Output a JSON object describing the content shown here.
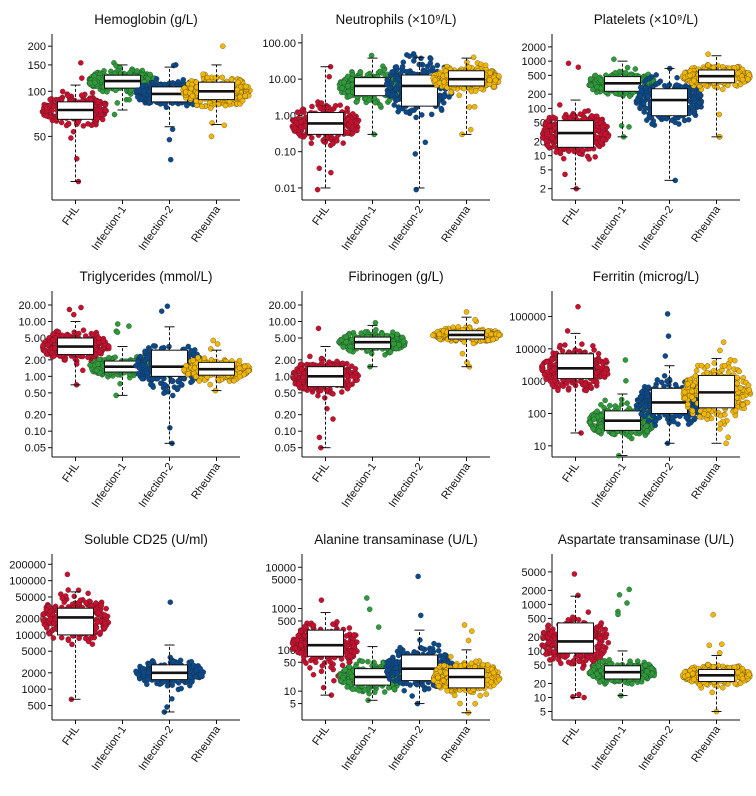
{
  "colors": {
    "FHL": "#c8102e",
    "Infection-1": "#2e9b3a",
    "Infection-2": "#0b4a8a",
    "Rheuma": "#f2b705"
  },
  "chart_data": [
    {
      "type": "box",
      "title": "Hemoglobin (g/L)",
      "categories": [
        "FHL",
        "Infection-1",
        "Infection-2",
        "Rheuma"
      ],
      "yscale": "log",
      "ylim": [
        20,
        220
      ],
      "yticks": [
        50,
        100,
        150,
        200
      ],
      "ytick_labels": [
        "50",
        "100",
        "150",
        "200"
      ],
      "boxes": [
        {
          "group": "FHL",
          "q1": 65,
          "median": 75,
          "q3": 85,
          "whisker_low": 25,
          "whisker_high": 110,
          "extent_low": 25,
          "extent_high": 155
        },
        {
          "group": "Infection-1",
          "q1": 105,
          "median": 117,
          "q3": 128,
          "whisker_low": 75,
          "whisker_high": 150,
          "extent_low": 70,
          "extent_high": 155
        },
        {
          "group": "Infection-2",
          "q1": 85,
          "median": 96,
          "q3": 107,
          "whisker_low": 58,
          "whisker_high": 145,
          "extent_low": 35,
          "extent_high": 150
        },
        {
          "group": "Rheuma",
          "q1": 88,
          "median": 100,
          "q3": 115,
          "whisker_low": 60,
          "whisker_high": 150,
          "extent_low": 50,
          "extent_high": 200
        }
      ]
    },
    {
      "type": "box",
      "title": "Neutrophils (×10⁹/L)",
      "categories": [
        "FHL",
        "Infection-1",
        "Infection-2",
        "Rheuma"
      ],
      "yscale": "log",
      "ylim": [
        0.006,
        120
      ],
      "yticks": [
        0.01,
        0.1,
        1,
        10,
        100
      ],
      "ytick_labels": [
        "0.01",
        "0.10",
        "1.00",
        "10.00",
        "100.00"
      ],
      "boxes": [
        {
          "group": "FHL",
          "q1": 0.3,
          "median": 0.6,
          "q3": 1.2,
          "whisker_low": 0.01,
          "whisker_high": 22,
          "extent_low": 0.009,
          "extent_high": 22
        },
        {
          "group": "Infection-1",
          "q1": 3.5,
          "median": 6.5,
          "q3": 11,
          "whisker_low": 0.3,
          "whisker_high": 38,
          "extent_low": 0.3,
          "extent_high": 45
        },
        {
          "group": "Infection-2",
          "q1": 1.8,
          "median": 6.5,
          "q3": 13,
          "whisker_low": 0.01,
          "whisker_high": 40,
          "extent_low": 0.009,
          "extent_high": 50
        },
        {
          "group": "Rheuma",
          "q1": 6.5,
          "median": 10,
          "q3": 17,
          "whisker_low": 0.3,
          "whisker_high": 38,
          "extent_low": 0.3,
          "extent_high": 40
        }
      ]
    },
    {
      "type": "box",
      "title": "Platelets (×10⁹/L)",
      "categories": [
        "FHL",
        "Infection-1",
        "Infection-2",
        "Rheuma"
      ],
      "yscale": "log",
      "ylim": [
        1.4,
        2800
      ],
      "yticks": [
        2,
        5,
        10,
        20,
        50,
        100,
        200,
        500,
        1000,
        2000
      ],
      "ytick_labels": [
        "2",
        "5",
        "10",
        "20",
        "50",
        "100",
        "200",
        "500",
        "1000",
        "2000"
      ],
      "boxes": [
        {
          "group": "FHL",
          "q1": 15,
          "median": 30,
          "q3": 55,
          "whisker_low": 2,
          "whisker_high": 150,
          "extent_low": 2,
          "extent_high": 900
        },
        {
          "group": "Infection-1",
          "q1": 230,
          "median": 340,
          "q3": 470,
          "whisker_low": 25,
          "whisker_high": 1000,
          "extent_low": 25,
          "extent_high": 1100
        },
        {
          "group": "Infection-2",
          "q1": 70,
          "median": 150,
          "q3": 260,
          "whisker_low": 3,
          "whisker_high": 700,
          "extent_low": 3,
          "extent_high": 700
        },
        {
          "group": "Rheuma",
          "q1": 350,
          "median": 480,
          "q3": 650,
          "whisker_low": 25,
          "whisker_high": 1300,
          "extent_low": 25,
          "extent_high": 1400
        }
      ]
    },
    {
      "type": "box",
      "title": "Triglycerides (mmol/L)",
      "categories": [
        "FHL",
        "Infection-1",
        "Infection-2",
        "Rheuma"
      ],
      "yscale": "log",
      "ylim": [
        0.04,
        28
      ],
      "yticks": [
        0.05,
        0.1,
        0.2,
        0.5,
        1,
        2,
        5,
        10,
        20
      ],
      "ytick_labels": [
        "0.05",
        "0.10",
        "0.20",
        "0.50",
        "1.00",
        "2.00",
        "5.00",
        "10.00",
        "20.00"
      ],
      "boxes": [
        {
          "group": "FHL",
          "q1": 2.5,
          "median": 3.5,
          "q3": 5.0,
          "whisker_low": 0.7,
          "whisker_high": 10,
          "extent_low": 0.7,
          "extent_high": 18
        },
        {
          "group": "Infection-1",
          "q1": 1.2,
          "median": 1.5,
          "q3": 1.9,
          "whisker_low": 0.45,
          "whisker_high": 3.5,
          "extent_low": 0.45,
          "extent_high": 9
        },
        {
          "group": "Infection-2",
          "q1": 1.0,
          "median": 1.5,
          "q3": 3.0,
          "whisker_low": 0.06,
          "whisker_high": 8,
          "extent_low": 0.06,
          "extent_high": 19
        },
        {
          "group": "Rheuma",
          "q1": 1.05,
          "median": 1.35,
          "q3": 1.8,
          "whisker_low": 0.55,
          "whisker_high": 3,
          "extent_low": 0.55,
          "extent_high": 4.5
        }
      ]
    },
    {
      "type": "box",
      "title": "Fibrinogen (g/L)",
      "categories": [
        "FHL",
        "Infection-1",
        "Infection-2",
        "Rheuma"
      ],
      "yscale": "log",
      "ylim": [
        0.04,
        28
      ],
      "yticks": [
        0.05,
        0.1,
        0.2,
        0.5,
        1,
        2,
        5,
        10,
        20
      ],
      "ytick_labels": [
        "0.05",
        "0.10",
        "0.20",
        "0.50",
        "1.00",
        "2.00",
        "5.00",
        "10.00",
        "20.00"
      ],
      "boxes": [
        {
          "group": "FHL",
          "q1": 0.65,
          "median": 1.0,
          "q3": 1.5,
          "whisker_low": 0.05,
          "whisker_high": 3.5,
          "extent_low": 0.05,
          "extent_high": 7.5
        },
        {
          "group": "Infection-1",
          "q1": 3.2,
          "median": 4.2,
          "q3": 5.2,
          "whisker_low": 1.5,
          "whisker_high": 8.5,
          "extent_low": 1.5,
          "extent_high": 9.5
        },
        {
          "group": "Rheuma",
          "q1": 4.8,
          "median": 5.7,
          "q3": 6.8,
          "whisker_low": 1.5,
          "whisker_high": 12,
          "extent_low": 1.5,
          "extent_high": 15
        }
      ]
    },
    {
      "type": "box",
      "title": "Ferritin (microg/L)",
      "categories": [
        "FHL",
        "Infection-1",
        "Infection-2",
        "Rheuma"
      ],
      "yscale": "log",
      "ylim": [
        6,
        400000
      ],
      "yticks": [
        10,
        100,
        1000,
        10000,
        100000
      ],
      "ytick_labels": [
        "10",
        "100",
        "1000",
        "10000",
        "100000"
      ],
      "boxes": [
        {
          "group": "FHL",
          "q1": 1200,
          "median": 2500,
          "q3": 7000,
          "whisker_low": 25,
          "whisker_high": 30000,
          "extent_low": 25,
          "extent_high": 200000
        },
        {
          "group": "Infection-1",
          "q1": 30,
          "median": 60,
          "q3": 120,
          "whisker_low": 5,
          "whisker_high": 400,
          "extent_low": 5,
          "extent_high": 4500
        },
        {
          "group": "Infection-2",
          "q1": 100,
          "median": 220,
          "q3": 600,
          "whisker_low": 12,
          "whisker_high": 3000,
          "extent_low": 12,
          "extent_high": 120000
        },
        {
          "group": "Rheuma",
          "q1": 150,
          "median": 450,
          "q3": 1500,
          "whisker_low": 12,
          "whisker_high": 5000,
          "extent_low": 12,
          "extent_high": 16000
        }
      ]
    },
    {
      "type": "box",
      "title": "Soluble CD25 (U/ml)",
      "categories": [
        "FHL",
        "Infection-1",
        "Infection-2",
        "Rheuma"
      ],
      "yscale": "log",
      "ylim": [
        320,
        240000
      ],
      "yticks": [
        500,
        1000,
        2000,
        5000,
        10000,
        20000,
        50000,
        100000,
        200000
      ],
      "ytick_labels": [
        "500",
        "1000",
        "2000",
        "5000",
        "10000",
        "20000",
        "50000",
        "100000",
        "200000"
      ],
      "boxes": [
        {
          "group": "FHL",
          "q1": 10000,
          "median": 21000,
          "q3": 31000,
          "whisker_low": 650,
          "whisker_high": 62000,
          "extent_low": 650,
          "extent_high": 130000
        },
        {
          "group": "Infection-2",
          "q1": 1500,
          "median": 2000,
          "q3": 2800,
          "whisker_low": 380,
          "whisker_high": 6500,
          "extent_low": 380,
          "extent_high": 40000
        }
      ]
    },
    {
      "type": "box",
      "title": "Alanine transaminase (U/L)",
      "categories": [
        "FHL",
        "Infection-1",
        "Infection-2",
        "Rheuma"
      ],
      "yscale": "log",
      "ylim": [
        2.5,
        15000
      ],
      "yticks": [
        5,
        10,
        50,
        100,
        500,
        1000,
        5000,
        10000
      ],
      "ytick_labels": [
        "5",
        "10",
        "50",
        "100",
        "500",
        "1000",
        "5000",
        "10000"
      ],
      "boxes": [
        {
          "group": "FHL",
          "q1": 70,
          "median": 130,
          "q3": 300,
          "whisker_low": 8,
          "whisker_high": 800,
          "extent_low": 8,
          "extent_high": 1600
        },
        {
          "group": "Infection-1",
          "q1": 14,
          "median": 22,
          "q3": 35,
          "whisker_low": 6,
          "whisker_high": 120,
          "extent_low": 6,
          "extent_high": 1800
        },
        {
          "group": "Infection-2",
          "q1": 18,
          "median": 35,
          "q3": 75,
          "whisker_low": 5,
          "whisker_high": 300,
          "extent_low": 5,
          "extent_high": 6000
        },
        {
          "group": "Rheuma",
          "q1": 12,
          "median": 22,
          "q3": 35,
          "whisker_low": 3,
          "whisker_high": 100,
          "extent_low": 3,
          "extent_high": 400
        }
      ]
    },
    {
      "type": "box",
      "title": "Aspartate transaminase (U/L)",
      "categories": [
        "FHL",
        "Infection-1",
        "Infection-2",
        "Rheuma"
      ],
      "yscale": "log",
      "ylim": [
        4,
        9000
      ],
      "yticks": [
        5,
        10,
        20,
        50,
        100,
        200,
        500,
        1000,
        2000,
        5000
      ],
      "ytick_labels": [
        "5",
        "10",
        "20",
        "50",
        "100",
        "200",
        "500",
        "1000",
        "2000",
        "5000"
      ],
      "boxes": [
        {
          "group": "FHL",
          "q1": 90,
          "median": 160,
          "q3": 400,
          "whisker_low": 10,
          "whisker_high": 1500,
          "extent_low": 10,
          "extent_high": 4500
        },
        {
          "group": "Infection-1",
          "q1": 25,
          "median": 35,
          "q3": 48,
          "whisker_low": 11,
          "whisker_high": 100,
          "extent_low": 11,
          "extent_high": 2100
        },
        {
          "group": "Rheuma",
          "q1": 22,
          "median": 30,
          "q3": 40,
          "whisker_low": 5,
          "whisker_high": 80,
          "extent_low": 5,
          "extent_high": 600
        }
      ]
    }
  ]
}
